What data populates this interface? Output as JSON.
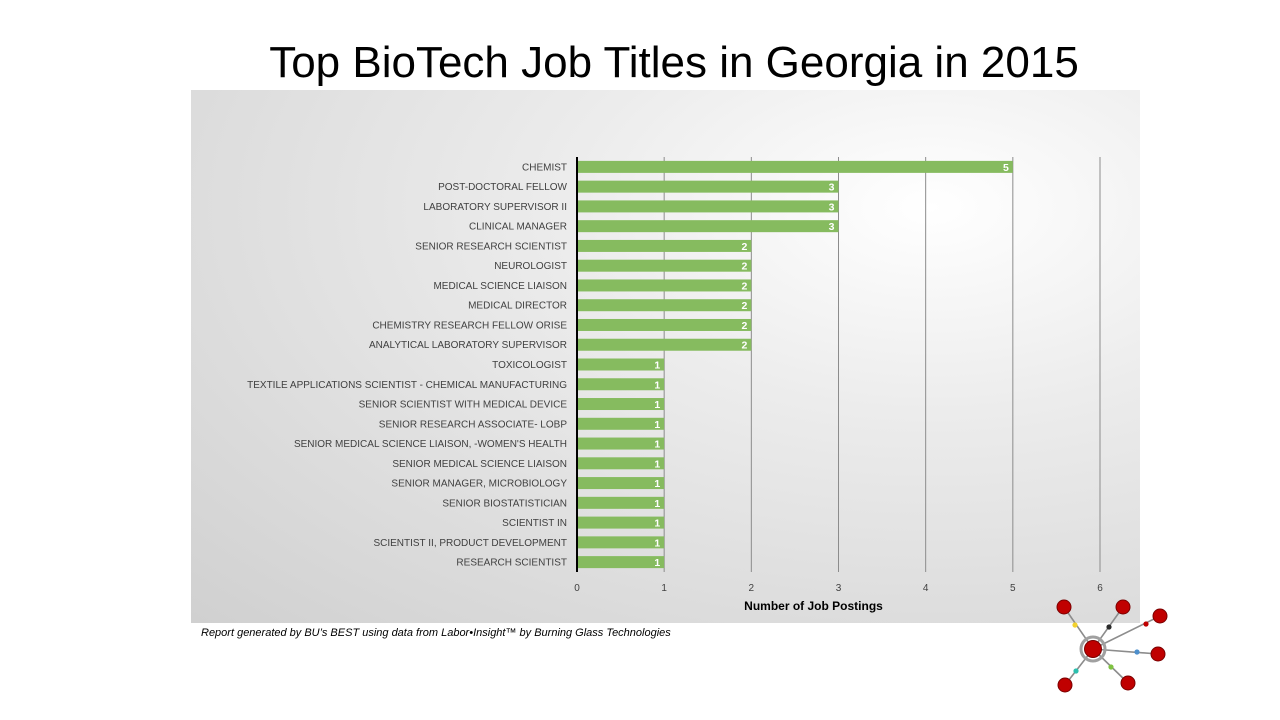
{
  "page": {
    "title": "Top BioTech Job Titles in Georgia in 2015",
    "footer_note": "Report generated by BU’s BEST using data from Labor•Insight™ by Burning Glass Technologies"
  },
  "colors": {
    "bar": "#86bb5f",
    "bar_label": "#ffffff",
    "gridline": "#8c8c8c",
    "axis": "#000000",
    "text": "#404040",
    "logo_node": "#c00000",
    "logo_hub_ring": "#a0a0a0",
    "logo_line": "#8c8c8c"
  },
  "chart_data": {
    "type": "bar",
    "orientation": "horizontal",
    "title": "Top BioTech Job Titles in Georgia in 2015",
    "xlabel": "Number of Job Postings",
    "ylabel": "",
    "xlim": [
      0,
      6
    ],
    "x_ticks": [
      0,
      1,
      2,
      3,
      4,
      5,
      6
    ],
    "grid": true,
    "legend": "none",
    "data_labels": true,
    "categories": [
      "CHEMIST",
      "POST-DOCTORAL FELLOW",
      "LABORATORY SUPERVISOR II",
      "CLINICAL MANAGER",
      "SENIOR RESEARCH SCIENTIST",
      "NEUROLOGIST",
      "MEDICAL SCIENCE LIAISON",
      "MEDICAL DIRECTOR",
      "CHEMISTRY RESEARCH FELLOW ORISE",
      "ANALYTICAL LABORATORY SUPERVISOR",
      "TOXICOLOGIST",
      "TEXTILE APPLICATIONS SCIENTIST - CHEMICAL MANUFACTURING",
      "SENIOR SCIENTIST WITH MEDICAL DEVICE",
      "SENIOR RESEARCH ASSOCIATE- LOBP",
      "SENIOR MEDICAL SCIENCE LIAISON, -WOMEN'S HEALTH",
      "SENIOR MEDICAL SCIENCE LIAISON",
      "SENIOR MANAGER, MICROBIOLOGY",
      "SENIOR BIOSTATISTICIAN",
      "SCIENTIST IN",
      "SCIENTIST II, PRODUCT DEVELOPMENT",
      "RESEARCH SCIENTIST"
    ],
    "values": [
      5,
      3,
      3,
      3,
      2,
      2,
      2,
      2,
      2,
      2,
      1,
      1,
      1,
      1,
      1,
      1,
      1,
      1,
      1,
      1,
      1
    ]
  },
  "logo": {
    "icon": "network-hub-logo"
  }
}
